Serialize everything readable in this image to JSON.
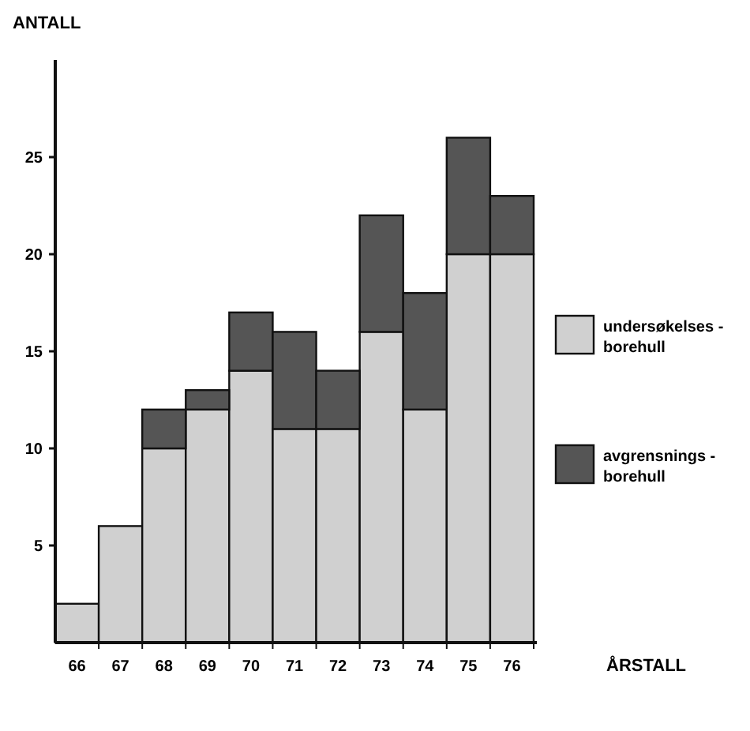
{
  "chart_data": {
    "type": "bar",
    "stacked": true,
    "ylabel": "ANTALL",
    "xlabel": "ÅRSTALL",
    "categories": [
      "66",
      "67",
      "68",
      "69",
      "70",
      "71",
      "72",
      "73",
      "74",
      "75",
      "76"
    ],
    "series": [
      {
        "name": "undersøkelses - borehull",
        "color": "#d0d0d0",
        "values": [
          2,
          6,
          10,
          12,
          14,
          11,
          11,
          16,
          12,
          20,
          20
        ]
      },
      {
        "name": "avgrensnings - borehull",
        "color": "#555555",
        "values": [
          0,
          0,
          2,
          1,
          3,
          5,
          3,
          6,
          6,
          6,
          3
        ]
      }
    ],
    "ylim": [
      0,
      30
    ],
    "yticks": [
      5,
      10,
      15,
      20,
      25
    ],
    "grid": false,
    "legend": "right"
  }
}
